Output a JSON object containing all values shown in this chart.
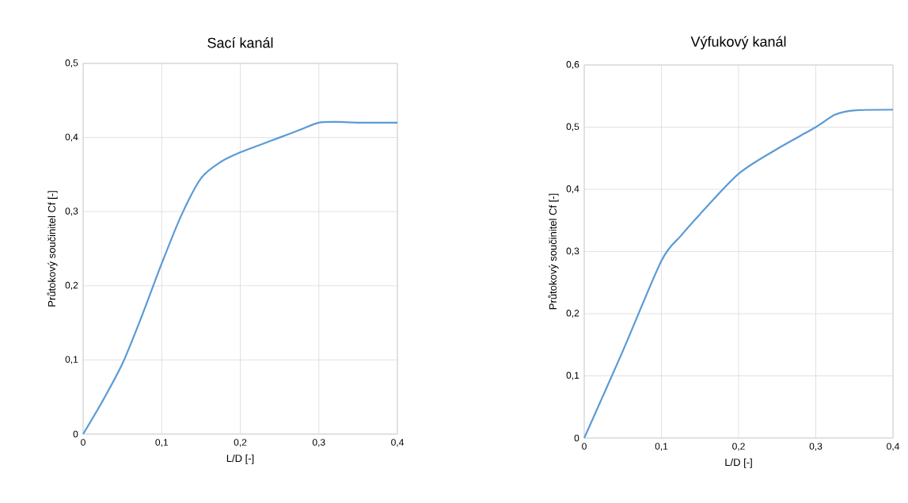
{
  "chart_data": [
    {
      "type": "line",
      "title": "Sací kanál",
      "xlabel": "L/D [-]",
      "ylabel": "Průtokový součinitel Cf [-]",
      "x": [
        0,
        0.025,
        0.05,
        0.075,
        0.1,
        0.125,
        0.15,
        0.175,
        0.2,
        0.225,
        0.25,
        0.275,
        0.3,
        0.325,
        0.35,
        0.4
      ],
      "values": [
        0,
        0.045,
        0.095,
        0.16,
        0.23,
        0.295,
        0.345,
        0.367,
        0.38,
        0.39,
        0.4,
        0.41,
        0.42,
        0.421,
        0.42,
        0.42
      ],
      "color": "#5b9bd5",
      "grid": true,
      "xlim": [
        0,
        0.4
      ],
      "ylim": [
        0,
        0.5
      ],
      "xticks": [
        0,
        {
          "value": 0.1,
          "label": "0,1"
        },
        {
          "value": 0.2,
          "label": "0,2"
        },
        {
          "value": 0.3,
          "label": "0,3"
        },
        {
          "value": 0.4,
          "label": "0,4"
        }
      ],
      "yticks": [
        0,
        {
          "value": 0.1,
          "label": "0,1"
        },
        {
          "value": 0.2,
          "label": "0,2"
        },
        {
          "value": 0.3,
          "label": "0,3"
        },
        {
          "value": 0.4,
          "label": "0,4"
        },
        {
          "value": 0.5,
          "label": "0,5"
        }
      ]
    },
    {
      "type": "line",
      "title": "Výfukový kanál",
      "xlabel": "L/D [-]",
      "ylabel": "Průtokový součinitel Cf [-]",
      "x": [
        0,
        0.05,
        0.1,
        0.125,
        0.15,
        0.2,
        0.25,
        0.3,
        0.325,
        0.35,
        0.4
      ],
      "values": [
        0,
        0.14,
        0.285,
        0.325,
        0.36,
        0.425,
        0.465,
        0.5,
        0.52,
        0.527,
        0.528
      ],
      "color": "#5b9bd5",
      "grid": true,
      "xlim": [
        0,
        0.4
      ],
      "ylim": [
        0,
        0.6
      ],
      "xticks": [
        0,
        {
          "value": 0.1,
          "label": "0,1"
        },
        {
          "value": 0.2,
          "label": "0,2"
        },
        {
          "value": 0.3,
          "label": "0,3"
        },
        {
          "value": 0.4,
          "label": "0,4"
        }
      ],
      "yticks": [
        0,
        {
          "value": 0.1,
          "label": "0,1"
        },
        {
          "value": 0.2,
          "label": "0,2"
        },
        {
          "value": 0.3,
          "label": "0,3"
        },
        {
          "value": 0.4,
          "label": "0,4"
        },
        {
          "value": 0.5,
          "label": "0,5"
        },
        {
          "value": 0.6,
          "label": "0,6"
        }
      ]
    }
  ]
}
